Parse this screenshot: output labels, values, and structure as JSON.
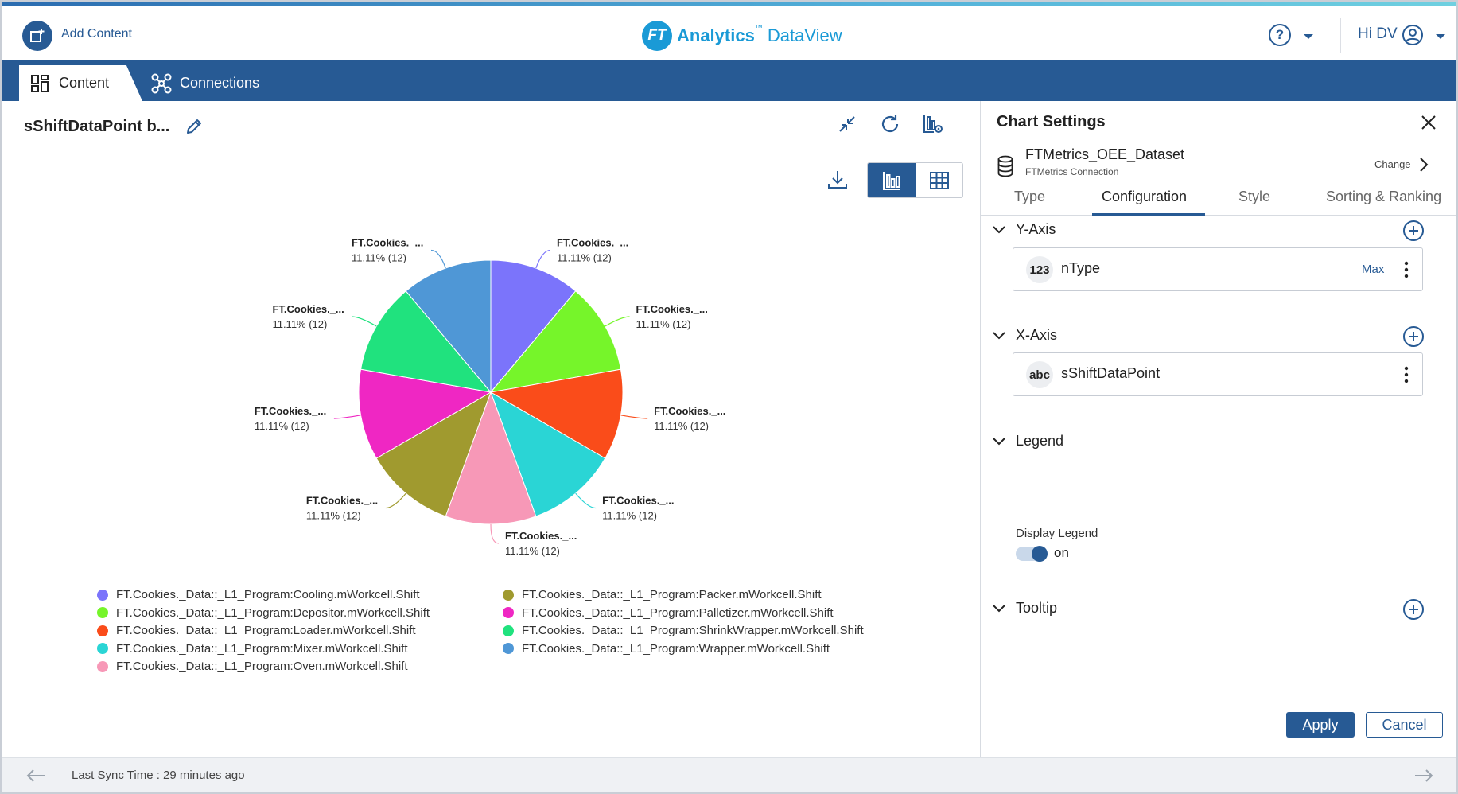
{
  "header": {
    "add_content_label": "Add Content",
    "logo_mark": "FT",
    "logo_brand": "Analytics",
    "logo_tm": "™",
    "logo_product": "DataView",
    "help_symbol": "?",
    "greeting": "Hi DV"
  },
  "nav": {
    "tabs": [
      {
        "label": "Content",
        "icon": "dashboard-grid-icon",
        "active": true
      },
      {
        "label": "Connections",
        "icon": "connections-icon",
        "active": false
      }
    ]
  },
  "chart_panel": {
    "title": "sShiftDataPoint b...",
    "toolbar": [
      "collapse-icon",
      "refresh-icon",
      "chart-settings-icon",
      "download-icon",
      "bar-chart-view-icon",
      "table-view-icon"
    ]
  },
  "chart_data": {
    "type": "pie",
    "slice_label_text": "FT.Cookies._...",
    "slices": [
      {
        "name": "FT.Cookies._Data::_L1_Program:Cooling.mWorkcell.Shift",
        "value": 12,
        "percent": "11.11%",
        "color": "#7b74fb"
      },
      {
        "name": "FT.Cookies._Data::_L1_Program:Depositor.mWorkcell.Shift",
        "value": 12,
        "percent": "11.11%",
        "color": "#76f52a"
      },
      {
        "name": "FT.Cookies._Data::_L1_Program:Loader.mWorkcell.Shift",
        "value": 12,
        "percent": "11.11%",
        "color": "#fa4c1a"
      },
      {
        "name": "FT.Cookies._Data::_L1_Program:Mixer.mWorkcell.Shift",
        "value": 12,
        "percent": "11.11%",
        "color": "#2ad5d5"
      },
      {
        "name": "FT.Cookies._Data::_L1_Program:Oven.mWorkcell.Shift",
        "value": 12,
        "percent": "11.11%",
        "color": "#f798b7"
      },
      {
        "name": "FT.Cookies._Data::_L1_Program:Packer.mWorkcell.Shift",
        "value": 12,
        "percent": "11.11%",
        "color": "#a09a2f"
      },
      {
        "name": "FT.Cookies._Data::_L1_Program:Palletizer.mWorkcell.Shift",
        "value": 12,
        "percent": "11.11%",
        "color": "#ef27c3"
      },
      {
        "name": "FT.Cookies._Data::_L1_Program:ShrinkWrapper.mWorkcell.Shift",
        "value": 12,
        "percent": "11.11%",
        "color": "#20e27e"
      },
      {
        "name": "FT.Cookies._Data::_L1_Program:Wrapper.mWorkcell.Shift",
        "value": 12,
        "percent": "11.11%",
        "color": "#4f97d6"
      }
    ],
    "legend": {
      "columns": 2
    }
  },
  "settings": {
    "title": "Chart Settings",
    "dataset_name": "FTMetrics_OEE_Dataset",
    "connection_name": "FTMetrics Connection",
    "change_label": "Change",
    "tabs": [
      {
        "label": "Type",
        "active": false
      },
      {
        "label": "Configuration",
        "active": true
      },
      {
        "label": "Style",
        "active": false
      },
      {
        "label": "Sorting & Ranking",
        "active": false
      }
    ],
    "y_axis": {
      "label": "Y-Axis",
      "field_type": "123",
      "field_name": "nType",
      "aggregation": "Max"
    },
    "x_axis": {
      "label": "X-Axis",
      "field_type": "abc",
      "field_name": "sShiftDataPoint"
    },
    "legend": {
      "label": "Legend",
      "display_label": "Display Legend",
      "toggle_state": "on"
    },
    "tooltip": {
      "label": "Tooltip"
    },
    "apply_label": "Apply",
    "cancel_label": "Cancel"
  },
  "footer": {
    "sync_text": "Last Sync Time : 29 minutes ago"
  },
  "colors": {
    "brand": "#275a94",
    "logo": "#1a9ad6"
  }
}
